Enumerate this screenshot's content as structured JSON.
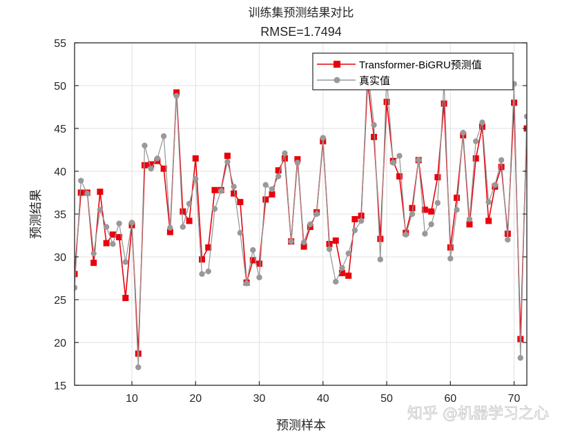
{
  "figure": {
    "title_line1": "训练集预测结果对比",
    "title_line2": "RMSE=1.7494",
    "xlabel": "预测样本",
    "ylabel": "预测结果",
    "watermark": "知乎 @机器学习之心"
  },
  "legend": {
    "items": [
      {
        "label": "Transformer-BiGRU预测值",
        "color": "#e8000b",
        "marker": "square"
      },
      {
        "label": "真实值",
        "color": "#999999",
        "marker": "circle"
      }
    ]
  },
  "colors": {
    "predicted": "#e8000b",
    "actual": "#999999",
    "axis": "#262626",
    "grid": "#e0e0e0"
  },
  "chart_data": {
    "type": "line",
    "title": "训练集预测结果对比 RMSE=1.7494",
    "xlabel": "预测样本",
    "ylabel": "预测结果",
    "xlim": [
      1,
      72
    ],
    "ylim": [
      15,
      55
    ],
    "xticks": [
      10,
      20,
      30,
      40,
      50,
      60,
      70
    ],
    "yticks": [
      15,
      20,
      25,
      30,
      35,
      40,
      45,
      50,
      55
    ],
    "grid": true,
    "legend_position": "upper right",
    "x": [
      1,
      2,
      3,
      4,
      5,
      6,
      7,
      8,
      9,
      10,
      11,
      12,
      13,
      14,
      15,
      16,
      17,
      18,
      19,
      20,
      21,
      22,
      23,
      24,
      25,
      26,
      27,
      28,
      29,
      30,
      31,
      32,
      33,
      34,
      35,
      36,
      37,
      38,
      39,
      40,
      41,
      42,
      43,
      44,
      45,
      46,
      47,
      48,
      49,
      50,
      51,
      52,
      53,
      54,
      55,
      56,
      57,
      58,
      59,
      60,
      61,
      62,
      63,
      64,
      65,
      66,
      67,
      68,
      69,
      70,
      71,
      72
    ],
    "series": [
      {
        "name": "Transformer-BiGRU预测值",
        "color": "#e8000b",
        "marker": "square",
        "values": [
          28.0,
          37.5,
          37.5,
          29.3,
          37.6,
          31.6,
          32.6,
          32.3,
          25.2,
          33.7,
          18.7,
          40.7,
          40.8,
          41.2,
          40.3,
          32.9,
          49.2,
          35.3,
          34.2,
          41.5,
          29.7,
          31.1,
          37.8,
          37.8,
          41.8,
          37.4,
          36.4,
          27.0,
          29.6,
          29.2,
          36.7,
          37.3,
          40.1,
          41.5,
          31.8,
          41.4,
          31.2,
          33.5,
          35.2,
          43.5,
          31.5,
          31.9,
          28.1,
          27.8,
          34.4,
          34.8,
          50.5,
          44.0,
          32.1,
          48.1,
          41.2,
          39.4,
          32.8,
          35.7,
          41.3,
          35.5,
          35.3,
          39.3,
          47.9,
          31.1,
          36.9,
          44.2,
          33.8,
          41.5,
          45.2,
          34.2,
          38.2,
          40.5,
          32.7,
          48.0,
          20.4,
          45.0
        ]
      },
      {
        "name": "真实值",
        "color": "#999999",
        "marker": "circle",
        "values": [
          26.4,
          38.9,
          37.4,
          30.4,
          35.5,
          33.5,
          31.5,
          33.9,
          29.4,
          34.0,
          17.1,
          43.0,
          40.3,
          41.5,
          44.1,
          33.4,
          48.8,
          33.5,
          36.2,
          39.1,
          28.0,
          28.3,
          35.6,
          37.7,
          41.1,
          38.2,
          32.8,
          26.9,
          30.8,
          27.6,
          38.4,
          37.9,
          39.4,
          42.1,
          31.8,
          41.0,
          31.7,
          33.8,
          35.0,
          43.9,
          30.9,
          27.1,
          28.7,
          30.4,
          33.1,
          34.2,
          52.0,
          45.4,
          29.7,
          51.0,
          41.0,
          41.8,
          32.6,
          35.0,
          41.3,
          32.7,
          33.8,
          36.3,
          50.5,
          29.8,
          35.5,
          44.5,
          34.4,
          43.5,
          45.7,
          36.4,
          38.4,
          41.3,
          32.0,
          50.2,
          18.2,
          46.4
        ]
      }
    ]
  }
}
